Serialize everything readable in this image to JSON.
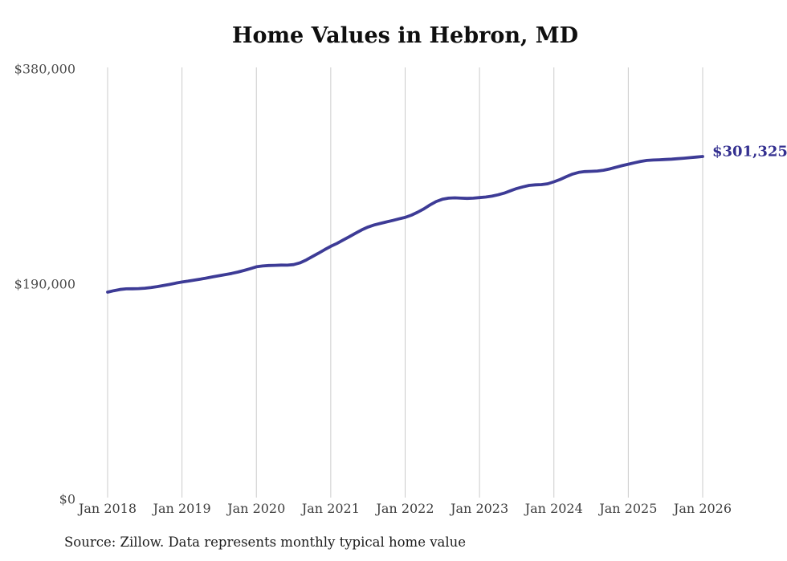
{
  "chart": {
    "title": "Home Values in Hebron, MD",
    "end_value_label": "$301,325",
    "source_note": "Source: Zillow. Data represents monthly typical home value"
  },
  "colors": {
    "line": "#3d3b96",
    "end_label": "#343090",
    "grid": "#cbcbcb",
    "title_text": "#0f0f0f",
    "axis_text": "#3d3d3d",
    "source_text": "#1c1c1c"
  },
  "chart_data": {
    "type": "line",
    "title": "Home Values in Hebron, MD",
    "xlabel": "",
    "ylabel": "",
    "x_unit": "month",
    "x_start": "Jan 2018",
    "x_end": "Jan 2026",
    "categories": [
      "Jan 2018",
      "Jan 2019",
      "Jan 2020",
      "Jan 2021",
      "Jan 2022",
      "Jan 2023",
      "Jan 2024",
      "Jan 2025",
      "Jan 2026"
    ],
    "y_ticks": [
      {
        "label": "$380,000",
        "value": 380000
      },
      {
        "label": "$190,000",
        "value": 190000
      },
      {
        "label": "$0",
        "value": 0
      }
    ],
    "ylim": [
      0,
      380000
    ],
    "grid": "vertical-only",
    "legend": "none",
    "series": [
      {
        "name": "Monthly typical home value",
        "values": [
          181500,
          182800,
          183800,
          184400,
          184500,
          184600,
          185000,
          185600,
          186400,
          187300,
          188300,
          189400,
          190400,
          191200,
          192100,
          193000,
          194000,
          195000,
          196000,
          197000,
          198000,
          199200,
          200600,
          202200,
          203900,
          204600,
          205000,
          205200,
          205400,
          205300,
          205800,
          207300,
          209800,
          212800,
          215800,
          219000,
          222000,
          224500,
          227500,
          230500,
          233500,
          236500,
          239000,
          240800,
          242200,
          243500,
          244800,
          246200,
          247500,
          249500,
          252000,
          255000,
          258500,
          261500,
          263500,
          264500,
          264800,
          264500,
          264300,
          264500,
          265000,
          265500,
          266300,
          267500,
          269000,
          271000,
          273000,
          274500,
          275800,
          276300,
          276500,
          277200,
          279000,
          281000,
          283500,
          285800,
          287300,
          288000,
          288200,
          288500,
          289200,
          290300,
          291800,
          293200,
          294500,
          295800,
          297000,
          297800,
          298200,
          298400,
          298700,
          299000,
          299400,
          299800,
          300300,
          300800,
          301325
        ]
      }
    ],
    "annotations": [
      {
        "text": "$301,325",
        "position": "line-end",
        "color": "#343090"
      }
    ]
  }
}
